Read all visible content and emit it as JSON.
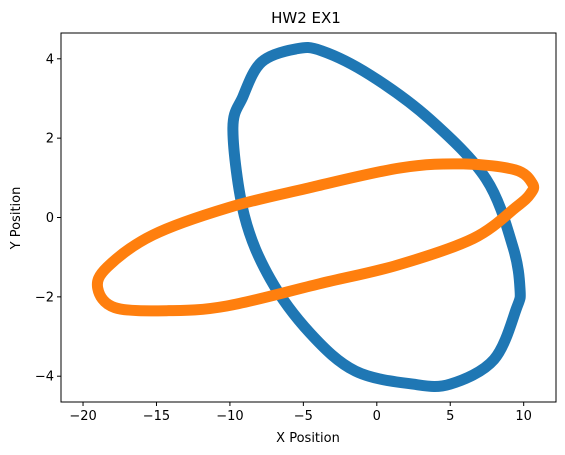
{
  "chart_data": {
    "type": "scatter",
    "title": "HW2 EX1",
    "xlabel": "X Position",
    "ylabel": "Y Position",
    "xlim": [
      -21.5,
      12.2
    ],
    "ylim": [
      -4.65,
      4.65
    ],
    "xticks": [
      -20,
      -15,
      -10,
      -5,
      0,
      5,
      10
    ],
    "yticks": [
      -4,
      -2,
      0,
      2,
      4
    ],
    "xtick_labels": [
      "−20",
      "−15",
      "−10",
      "−5",
      "0",
      "5",
      "10"
    ],
    "ytick_labels": [
      "−4",
      "−2",
      "0",
      "2",
      "4"
    ],
    "grid": false,
    "legend": "none",
    "series": [
      {
        "color": "#1f77b4",
        "shape": "ellipse",
        "points": [
          [
            -5.5,
            4.25
          ],
          [
            -7.84,
            3.92
          ],
          [
            -9.11,
            3.05
          ],
          [
            -9.8,
            2.2
          ],
          [
            -9.02,
            0.05
          ],
          [
            -7.25,
            -1.55
          ],
          [
            -4.53,
            -2.92
          ],
          [
            -1.46,
            -3.87
          ],
          [
            2.45,
            -4.2
          ],
          [
            5.0,
            -4.2
          ],
          [
            7.98,
            -3.58
          ],
          [
            9.5,
            -2.3
          ],
          [
            9.75,
            -1.8
          ],
          [
            9.26,
            -0.73
          ],
          [
            7.44,
            0.97
          ],
          [
            3.63,
            2.47
          ],
          [
            -0.45,
            3.59
          ],
          [
            -3.74,
            4.2
          ]
        ]
      },
      {
        "color": "#ff7f0e",
        "shape": "ellipse",
        "points": [
          [
            10.6,
            0.85
          ],
          [
            9.43,
            1.2
          ],
          [
            5.9,
            1.35
          ],
          [
            1.6,
            1.25
          ],
          [
            -4.8,
            0.73
          ],
          [
            -10.1,
            0.25
          ],
          [
            -15.24,
            -0.44
          ],
          [
            -18.35,
            -1.25
          ],
          [
            -19.0,
            -1.78
          ],
          [
            -17.84,
            -2.27
          ],
          [
            -14.31,
            -2.35
          ],
          [
            -10.21,
            -2.23
          ],
          [
            -3.91,
            -1.67
          ],
          [
            1.41,
            -1.2
          ],
          [
            6.56,
            -0.53
          ],
          [
            9.48,
            0.26
          ],
          [
            10.46,
            0.6
          ]
        ]
      }
    ]
  }
}
